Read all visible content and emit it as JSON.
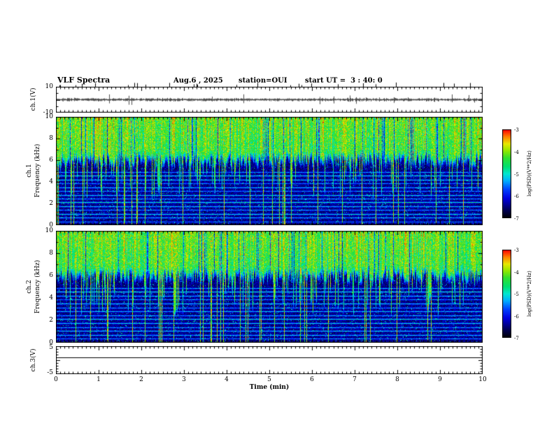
{
  "header": {
    "title": "VLF Spectra",
    "date": "Aug.6 , 2025",
    "station": "station=OUI",
    "start_ut": "start UT =  3 : 40: 0"
  },
  "axes": {
    "time": {
      "label": "Time (min)",
      "min": 0,
      "max": 10,
      "ticks": [
        "0",
        "1",
        "2",
        "3",
        "4",
        "5",
        "6",
        "7",
        "8",
        "9",
        "10"
      ]
    }
  },
  "panels": {
    "ch1_wave": {
      "ylabel": "ch.1(V)",
      "ymin": -10,
      "ymax": 10,
      "yticks": [
        "10",
        "-10"
      ]
    },
    "ch1_spec": {
      "name": "ch.1",
      "ylabel": "Frequency (kHz)",
      "ymin": 0,
      "ymax": 10,
      "yticks": [
        "10",
        "8",
        "6",
        "4",
        "2",
        "0"
      ]
    },
    "ch2_spec": {
      "name": "ch.2",
      "ylabel": "Frequency (kHz)",
      "ymin": 0,
      "ymax": 10,
      "yticks": [
        "10",
        "8",
        "6",
        "4",
        "2",
        "0"
      ]
    },
    "ch3_wave": {
      "ylabel": "ch.3(V)",
      "ymin": -5,
      "ymax": 5,
      "yticks": [
        "5",
        "-5"
      ]
    }
  },
  "colorbar": {
    "label": "log(PSD)(V**2/Hz)",
    "ticks": [
      "-3",
      "-4",
      "-5",
      "-6",
      "-7"
    ],
    "zmax": -3,
    "zmin": -7,
    "stops": [
      {
        "t": 0.0,
        "c": "#000006"
      },
      {
        "t": 0.1,
        "c": "#000060"
      },
      {
        "t": 0.22,
        "c": "#0000e0"
      },
      {
        "t": 0.32,
        "c": "#0040ff"
      },
      {
        "t": 0.42,
        "c": "#00b0ff"
      },
      {
        "t": 0.5,
        "c": "#00e8d0"
      },
      {
        "t": 0.58,
        "c": "#00e070"
      },
      {
        "t": 0.68,
        "c": "#30e030"
      },
      {
        "t": 0.76,
        "c": "#90e800"
      },
      {
        "t": 0.84,
        "c": "#e8e800"
      },
      {
        "t": 0.92,
        "c": "#ff8000"
      },
      {
        "t": 1.0,
        "c": "#ff0000"
      }
    ]
  },
  "markers": {
    "description": "irregular short event tick marks above the ch.1 waveform panel",
    "seed": 13
  },
  "chart_data": [
    {
      "type": "line",
      "name": "ch1-waveform",
      "title": "ch.1 time series",
      "ylabel": "ch.1(V)",
      "ylim": [
        -10,
        10
      ],
      "xlim": [
        0,
        10
      ],
      "xlabel": "Time (min)",
      "description": "Dense noise band centred on 0 V, roughly +/-1 V wide, with intermittent impulsive spikes reaching about +/-6 V throughout the 10 minutes",
      "seed": 7
    },
    {
      "type": "heatmap",
      "name": "ch1-spectrogram",
      "title": "ch.1 spectrogram",
      "ylabel": "Frequency (kHz)",
      "ylim": [
        0,
        10
      ],
      "xlim": [
        0,
        10
      ],
      "zlabel": "log(PSD)(V**2/Hz)",
      "zlim": [
        -7,
        -3
      ],
      "grid": false,
      "legend_position": "right-colorbar",
      "description": "Bright green/yellow broadband hiss above ~5-6 kHz with red tips near 10 kHz; many vertical sferic streaks extending down to 0 kHz; dark blue/black background below ~5 kHz crossed by narrow horizontal hum-harmonic lines",
      "seed": 101,
      "h_lines": [
        {
          "f": 0.35,
          "s": 0.34
        },
        {
          "f": 0.7,
          "s": 0.4
        },
        {
          "f": 1.05,
          "s": 0.46
        },
        {
          "f": 1.4,
          "s": 0.37
        },
        {
          "f": 1.75,
          "s": 0.42
        },
        {
          "f": 2.1,
          "s": 0.5
        },
        {
          "f": 2.45,
          "s": 0.38
        },
        {
          "f": 2.8,
          "s": 0.44
        },
        {
          "f": 3.15,
          "s": 0.36
        },
        {
          "f": 3.5,
          "s": 0.42
        },
        {
          "f": 3.85,
          "s": 0.35
        },
        {
          "f": 4.2,
          "s": 0.44
        },
        {
          "f": 4.55,
          "s": 0.48
        },
        {
          "f": 4.9,
          "s": 0.38
        }
      ]
    },
    {
      "type": "heatmap",
      "name": "ch2-spectrogram",
      "title": "ch.2 spectrogram",
      "ylabel": "Frequency (kHz)",
      "ylim": [
        0,
        10
      ],
      "xlim": [
        0,
        10
      ],
      "zlabel": "log(PSD)(V**2/Hz)",
      "zlim": [
        -7,
        -3
      ],
      "grid": false,
      "legend_position": "right-colorbar",
      "description": "Same structure as ch.1 spectrogram: bright band above ~5-6 kHz, vertical impulsive streaks, dark low-frequency region with horizontal harmonic lines",
      "seed": 202,
      "h_lines": [
        {
          "f": 0.35,
          "s": 0.36
        },
        {
          "f": 0.7,
          "s": 0.42
        },
        {
          "f": 1.05,
          "s": 0.44
        },
        {
          "f": 1.4,
          "s": 0.38
        },
        {
          "f": 1.75,
          "s": 0.44
        },
        {
          "f": 2.1,
          "s": 0.48
        },
        {
          "f": 2.45,
          "s": 0.4
        },
        {
          "f": 2.8,
          "s": 0.42
        },
        {
          "f": 3.15,
          "s": 0.37
        },
        {
          "f": 3.5,
          "s": 0.44
        },
        {
          "f": 3.85,
          "s": 0.36
        },
        {
          "f": 4.2,
          "s": 0.42
        },
        {
          "f": 4.55,
          "s": 0.5
        },
        {
          "f": 4.9,
          "s": 0.39
        }
      ]
    },
    {
      "type": "line",
      "name": "ch3-waveform",
      "title": "ch.3 time series",
      "ylabel": "ch.3(V)",
      "ylim": [
        -5,
        5
      ],
      "xlim": [
        0,
        10
      ],
      "xlabel": "Time (min)",
      "description": "Perfectly flat constant trace at about +1 V (no signal on channel 3)",
      "line_value": 1
    }
  ]
}
